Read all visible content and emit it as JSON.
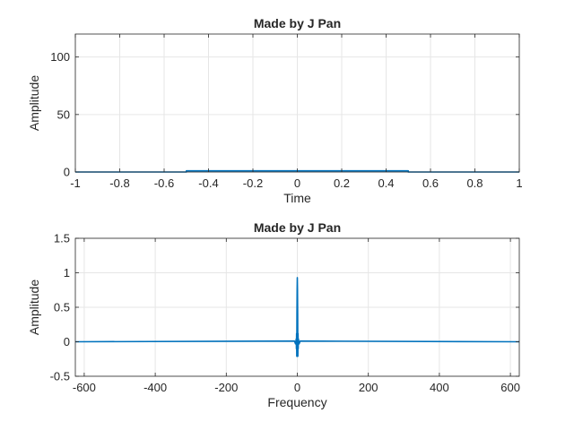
{
  "chart_data": [
    {
      "type": "line",
      "title": "Made by J Pan",
      "xlabel": "Time",
      "ylabel": "Amplitude",
      "xlim": [
        -1,
        1
      ],
      "ylim": [
        0,
        120
      ],
      "xticks": [
        -1,
        -0.8,
        -0.6,
        -0.4,
        -0.2,
        0,
        0.2,
        0.4,
        0.6,
        0.8,
        1
      ],
      "xtick_labels": [
        "-1",
        "-0.8",
        "-0.6",
        "-0.4",
        "-0.2",
        "0",
        "0.2",
        "0.4",
        "0.6",
        "0.8",
        "1"
      ],
      "yticks": [
        0,
        50,
        100
      ],
      "ytick_labels": [
        "0",
        "50",
        "100"
      ],
      "grid": true,
      "color": "#0072BD",
      "series": [
        {
          "x": [
            -1,
            -0.5,
            -0.5,
            0.5,
            0.5,
            1
          ],
          "y": [
            0,
            0,
            1,
            1,
            0,
            0
          ]
        }
      ]
    },
    {
      "type": "line",
      "title": "Made by J Pan",
      "xlabel": "Frequency",
      "ylabel": "Amplitude",
      "xlim": [
        -625,
        625
      ],
      "ylim": [
        -0.5,
        1.5
      ],
      "xticks": [
        -600,
        -400,
        -200,
        0,
        200,
        400,
        600
      ],
      "xtick_labels": [
        "-600",
        "-400",
        "-200",
        "0",
        "200",
        "400",
        "600"
      ],
      "yticks": [
        -0.5,
        0,
        0.5,
        1,
        1.5
      ],
      "ytick_labels": [
        "-0.5",
        "0",
        "0.5",
        "1",
        "1.5"
      ],
      "grid": true,
      "color": "#0072BD",
      "series": [
        {
          "x": [
            -625,
            -8,
            -5,
            -3,
            -2.5,
            -2,
            -1.5,
            -1,
            -0.5,
            0,
            0.5,
            1,
            1.5,
            2,
            2.5,
            3,
            5,
            8,
            625
          ],
          "y": [
            0,
            0.01,
            -0.03,
            0.04,
            -0.1,
            0.12,
            -0.21,
            0.4,
            0.75,
            0.93,
            0.75,
            0.4,
            -0.21,
            0.12,
            -0.1,
            0.04,
            -0.03,
            0.01,
            0
          ]
        }
      ]
    }
  ]
}
